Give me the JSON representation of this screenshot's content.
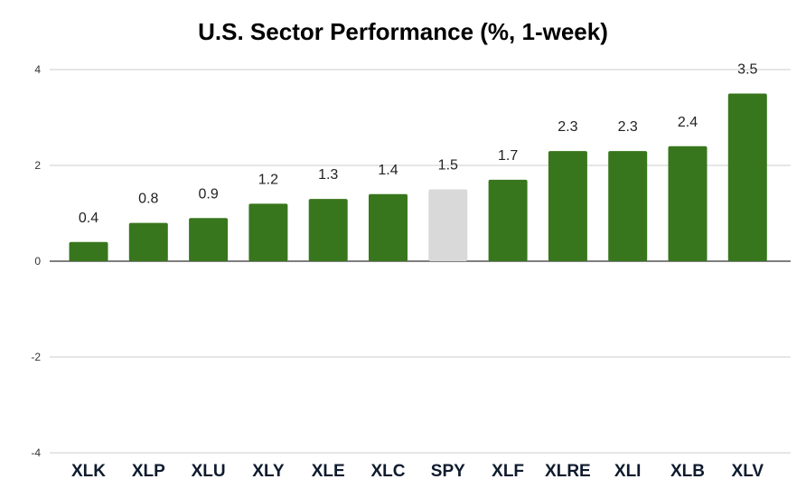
{
  "chart_data": {
    "type": "bar",
    "title": "U.S. Sector Performance (%, 1-week)",
    "xlabel": "",
    "ylabel": "",
    "ylim": [
      -4,
      4
    ],
    "yticks": [
      "4",
      "2",
      "0",
      "-2",
      "-4"
    ],
    "grid": true,
    "categories": [
      "XLK",
      "XLP",
      "XLU",
      "XLY",
      "XLE",
      "XLC",
      "SPY",
      "XLF",
      "XLRE",
      "XLI",
      "XLB",
      "XLV"
    ],
    "values": [
      0.4,
      0.8,
      0.9,
      1.2,
      1.3,
      1.4,
      1.5,
      1.7,
      2.3,
      2.3,
      2.4,
      3.5
    ],
    "labels": [
      "0.4",
      "0.8",
      "0.9",
      "1.2",
      "1.3",
      "1.4",
      "1.5",
      "1.7",
      "2.3",
      "2.3",
      "2.4",
      "3.5"
    ],
    "colors": {
      "default": "#38761d",
      "highlight": "#d9d9d9"
    },
    "highlight_category": "SPY"
  }
}
